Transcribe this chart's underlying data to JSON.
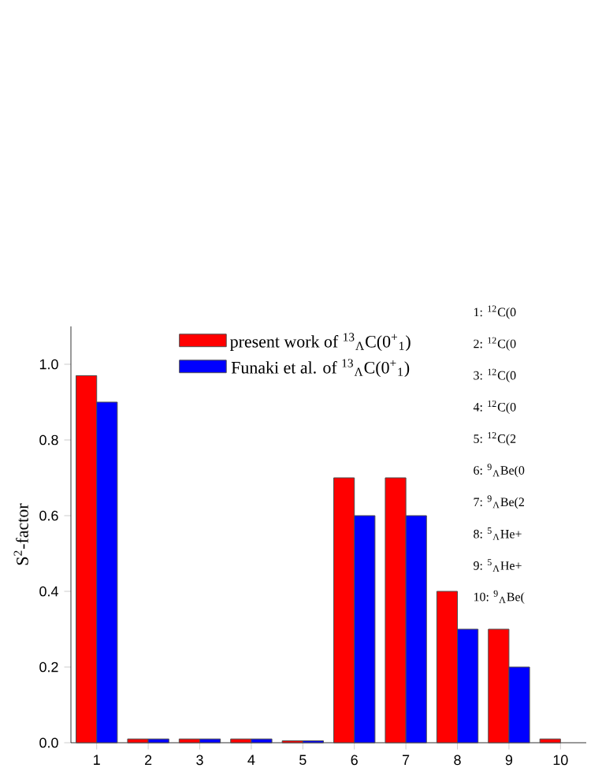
{
  "chart_data": {
    "type": "bar",
    "categories": [
      "1",
      "2",
      "3",
      "4",
      "5",
      "6",
      "7",
      "8",
      "9",
      "10"
    ],
    "series": [
      {
        "name": "present work of $^{13}$$_{Λ}$C(0$^{+}$$_{1}$)",
        "color": "#ff0000",
        "values": [
          0.97,
          0.01,
          0.01,
          0.01,
          0.005,
          0.7,
          0.7,
          0.4,
          0.3,
          0.01
        ]
      },
      {
        "name": "Funaki et al. of $^{13}$$_{Λ}$C(0$^{+}$$_{1}$)",
        "color": "#0000ff",
        "values": [
          0.9,
          0.01,
          0.01,
          0.01,
          0.005,
          0.6,
          0.6,
          0.3,
          0.2,
          null
        ]
      }
    ],
    "ylabel": "S$^{2}$-factor",
    "ylim": [
      0,
      1.1
    ],
    "yticks": [
      {
        "value": 0,
        "label": "0.0"
      },
      {
        "value": 0.2,
        "label": "0.2"
      },
      {
        "value": 0.4,
        "label": "0.4"
      },
      {
        "value": 0.6,
        "label": "0.6"
      },
      {
        "value": 0.8,
        "label": "0.8"
      },
      {
        "value": 1.0,
        "label": "1.0"
      }
    ],
    "legend": "top",
    "annotations": [
      "1: $^{12}$C(0",
      "2: $^{12}$C(0",
      "3: $^{12}$C(0",
      "4: $^{12}$C(0",
      "5: $^{12}$C(2",
      "6: $^{9}$$_{Λ}$Be(0",
      "7: $^{9}$$_{Λ}$Be(2",
      "8: $^{5}$$_{Λ}$He+",
      "9: $^{5}$$_{Λ}$He+",
      "10: $^{9}$$_{Λ}$Be("
    ]
  }
}
